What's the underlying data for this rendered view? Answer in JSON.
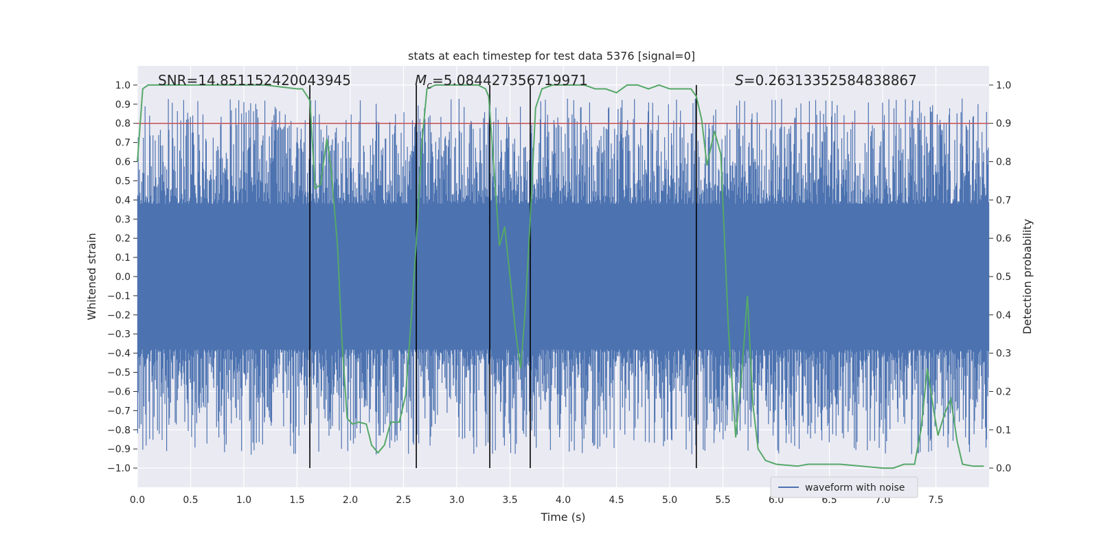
{
  "chart_data": {
    "type": "line",
    "title": "stats at each timestep for test data 5376 [signal=0]",
    "xlabel": "Time (s)",
    "ylabel": "Whitened strain",
    "ylabel_right": "Detection probability",
    "xlim": [
      0.0,
      8.0
    ],
    "ylim": [
      -1.1,
      1.1
    ],
    "ylim_right": [
      -0.05,
      1.05
    ],
    "xticks": [
      0.0,
      0.5,
      1.0,
      1.5,
      2.0,
      2.5,
      3.0,
      3.5,
      4.0,
      4.5,
      5.0,
      5.5,
      6.0,
      6.5,
      7.0,
      7.5
    ],
    "xtick_labels": [
      "0.0",
      "0.5",
      "1.0",
      "1.5",
      "2.0",
      "2.5",
      "3.0",
      "3.5",
      "4.0",
      "4.5",
      "5.0",
      "5.5",
      "6.0",
      "6.5",
      "7.0",
      "7.5"
    ],
    "yticks": [
      -1.0,
      -0.9,
      -0.8,
      -0.7,
      -0.6,
      -0.5,
      -0.4,
      -0.3,
      -0.2,
      -0.1,
      0.0,
      0.1,
      0.2,
      0.3,
      0.4,
      0.5,
      0.6,
      0.7,
      0.8,
      0.9,
      1.0
    ],
    "ytick_labels": [
      "−1.0",
      "−0.9",
      "−0.8",
      "−0.7",
      "−0.6",
      "−0.5",
      "−0.4",
      "−0.3",
      "−0.2",
      "−0.1",
      "0.0",
      "0.1",
      "0.2",
      "0.3",
      "0.4",
      "0.5",
      "0.6",
      "0.7",
      "0.8",
      "0.9",
      "1.0"
    ],
    "yticks_right": [
      0.0,
      0.1,
      0.2,
      0.3,
      0.4,
      0.5,
      0.6,
      0.7,
      0.8,
      0.9,
      1.0
    ],
    "ytick_labels_right": [
      "0.0",
      "0.1",
      "0.2",
      "0.3",
      "0.4",
      "0.5",
      "0.6",
      "0.7",
      "0.8",
      "0.9",
      "1.0"
    ],
    "grid": true,
    "annotations": {
      "snr": "SNR=14.851152420043945",
      "mc_symbol": "M",
      "mc_sub": "c",
      "mc_value": "=5.084427356719971",
      "s_symbol": "S",
      "s_value": "=0.26313352584838867"
    },
    "legend": {
      "label": "waveform with noise",
      "placement": "lower-right"
    },
    "threshold": 0.9,
    "vlines": [
      1.62,
      2.62,
      3.31,
      3.69,
      5.25
    ],
    "waveform": {
      "name": "waveform with noise",
      "min": -1.0,
      "max": 1.0,
      "typical_extent": 0.38
    },
    "probability": {
      "x": [
        0.0,
        0.05,
        0.1,
        0.15,
        0.2,
        0.3,
        0.5,
        0.8,
        1.0,
        1.2,
        1.5,
        1.55,
        1.62,
        1.67,
        1.72,
        1.78,
        1.82,
        1.88,
        1.92,
        1.97,
        2.02,
        2.08,
        2.15,
        2.2,
        2.26,
        2.32,
        2.38,
        2.46,
        2.52,
        2.57,
        2.62,
        2.67,
        2.72,
        2.8,
        3.0,
        3.2,
        3.27,
        3.3,
        3.35,
        3.4,
        3.45,
        3.5,
        3.55,
        3.6,
        3.64,
        3.69,
        3.74,
        3.8,
        3.9,
        4.0,
        4.2,
        4.3,
        4.4,
        4.5,
        4.6,
        4.7,
        4.8,
        4.9,
        5.0,
        5.1,
        5.2,
        5.25,
        5.3,
        5.35,
        5.42,
        5.48,
        5.55,
        5.62,
        5.68,
        5.73,
        5.78,
        5.83,
        5.9,
        6.0,
        6.2,
        6.3,
        6.4,
        6.6,
        6.8,
        7.0,
        7.1,
        7.2,
        7.3,
        7.36,
        7.42,
        7.48,
        7.52,
        7.58,
        7.64,
        7.7,
        7.75,
        7.85,
        7.95
      ],
      "y": [
        0.8,
        0.99,
        1.0,
        1.0,
        1.0,
        1.0,
        1.0,
        1.0,
        1.0,
        1.0,
        0.99,
        0.99,
        0.96,
        0.73,
        0.74,
        0.86,
        0.78,
        0.58,
        0.34,
        0.13,
        0.115,
        0.12,
        0.115,
        0.06,
        0.04,
        0.06,
        0.12,
        0.12,
        0.19,
        0.38,
        0.59,
        0.84,
        0.99,
        1.0,
        1.0,
        1.0,
        0.99,
        0.97,
        0.78,
        0.58,
        0.63,
        0.5,
        0.36,
        0.26,
        0.4,
        0.65,
        0.94,
        0.99,
        1.0,
        1.0,
        1.0,
        0.99,
        0.99,
        0.98,
        1.0,
        1.0,
        0.99,
        1.0,
        0.99,
        0.99,
        0.99,
        0.97,
        0.91,
        0.79,
        0.88,
        0.82,
        0.37,
        0.08,
        0.26,
        0.45,
        0.17,
        0.05,
        0.02,
        0.01,
        0.005,
        0.01,
        0.01,
        0.01,
        0.005,
        0.0,
        0.0,
        0.01,
        0.01,
        0.1,
        0.26,
        0.15,
        0.085,
        0.14,
        0.18,
        0.07,
        0.01,
        0.005,
        0.005
      ]
    },
    "colors": {
      "background": "#eaeaf2",
      "grid": "#ffffff",
      "waveform": "#4c72b0",
      "probability": "#55a868",
      "threshold": "#c44e52",
      "vline": "#000000"
    }
  }
}
